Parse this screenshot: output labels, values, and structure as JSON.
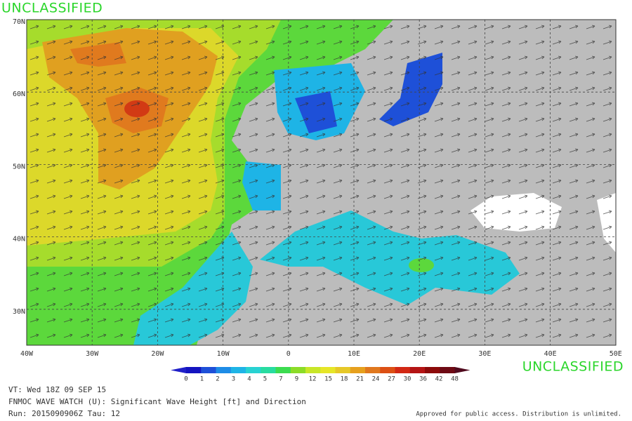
{
  "header": {
    "top_label": "UNCLASSIFIED"
  },
  "map": {
    "lat_labels": [
      "70N",
      "60N",
      "50N",
      "40N",
      "30N"
    ],
    "lon_labels": [
      "40W",
      "30W",
      "20W",
      "10W",
      "0",
      "10E",
      "20E",
      "30E",
      "40E",
      "50E"
    ]
  },
  "colorbar": {
    "labels": [
      0,
      1,
      2,
      3,
      4,
      5,
      7,
      9,
      12,
      15,
      18,
      21,
      24,
      27,
      30,
      36,
      42,
      48
    ],
    "colors": [
      "#2020c8",
      "#1414c0",
      "#1e50d8",
      "#1e8ce6",
      "#1eb4e6",
      "#28d2d2",
      "#28dca0",
      "#3cdc50",
      "#8cdc28",
      "#c8e628",
      "#e6e628",
      "#e6c828",
      "#e6a01e",
      "#e0781e",
      "#dc5014",
      "#d22814",
      "#b41414",
      "#8c0a0a",
      "#6e0a14",
      "#500a1e"
    ]
  },
  "footer": {
    "bottom_label": "UNCLASSIFIED",
    "valid_time": "VT: Wed 18Z 09 SEP 15",
    "product": "FNMOC WAVE WATCH (U): Significant Wave Height [ft] and Direction",
    "run": "Run: 2015090906Z Tau: 12",
    "approval": "Approved for public access. Distribution is unlimited."
  }
}
